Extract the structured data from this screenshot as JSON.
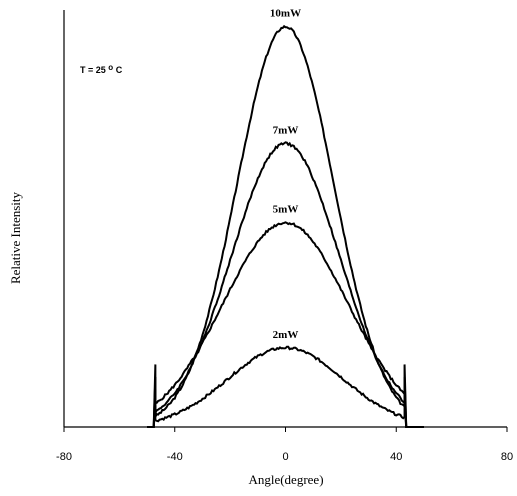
{
  "chart_data": {
    "type": "line",
    "title": "",
    "xlabel": "Angle(degree)",
    "ylabel": "Relative Intensity",
    "xlim": [
      -80,
      80
    ],
    "xticks": [
      "-80",
      "-40",
      "0",
      "40",
      "80"
    ],
    "y_tick_labels_shown": false,
    "grid": false,
    "legend": "none (series labeled above curve peaks)",
    "annotation": {
      "prefix": "T = 25",
      "degree_symbol": "o",
      "suffix": "C"
    },
    "cutoff_angles": [
      -47,
      43
    ],
    "series": [
      {
        "name": "10mW",
        "x": [
          -47,
          -40,
          -30,
          -20,
          -10,
          0,
          10,
          20,
          30,
          40,
          43
        ],
        "y": [
          0.12,
          0.19,
          0.31,
          0.5,
          0.78,
          0.96,
          0.8,
          0.5,
          0.29,
          0.16,
          0.12
        ]
      },
      {
        "name": "7mW",
        "x": [
          -47,
          -40,
          -30,
          -20,
          -10,
          0,
          10,
          20,
          30,
          40,
          43
        ],
        "y": [
          0.09,
          0.15,
          0.25,
          0.4,
          0.59,
          0.68,
          0.58,
          0.39,
          0.23,
          0.13,
          0.09
        ]
      },
      {
        "name": "5mW",
        "x": [
          -47,
          -40,
          -30,
          -20,
          -10,
          0,
          10,
          20,
          30,
          40,
          43
        ],
        "y": [
          0.06,
          0.11,
          0.2,
          0.33,
          0.45,
          0.49,
          0.44,
          0.32,
          0.19,
          0.1,
          0.06
        ]
      },
      {
        "name": "2mW",
        "x": [
          -47,
          -40,
          -30,
          -20,
          -10,
          0,
          10,
          20,
          30,
          40,
          43
        ],
        "y": [
          0.02,
          0.04,
          0.07,
          0.12,
          0.17,
          0.19,
          0.17,
          0.11,
          0.06,
          0.03,
          0.02
        ]
      }
    ]
  }
}
